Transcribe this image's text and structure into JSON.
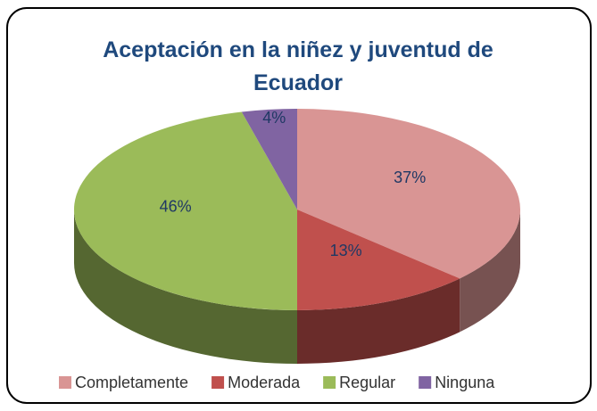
{
  "chart_data": {
    "type": "pie",
    "title": "Aceptación en la niñez y juventud de Ecuador",
    "categories": [
      "Completamente",
      "Moderada",
      "Regular",
      "Ninguna"
    ],
    "values": [
      37,
      13,
      46,
      4
    ],
    "value_labels": [
      "37%",
      "13%",
      "46%",
      "4%"
    ],
    "colors": [
      "#d99594",
      "#c0504d",
      "#9bbb59",
      "#8064a2"
    ],
    "legend": "bottom"
  }
}
